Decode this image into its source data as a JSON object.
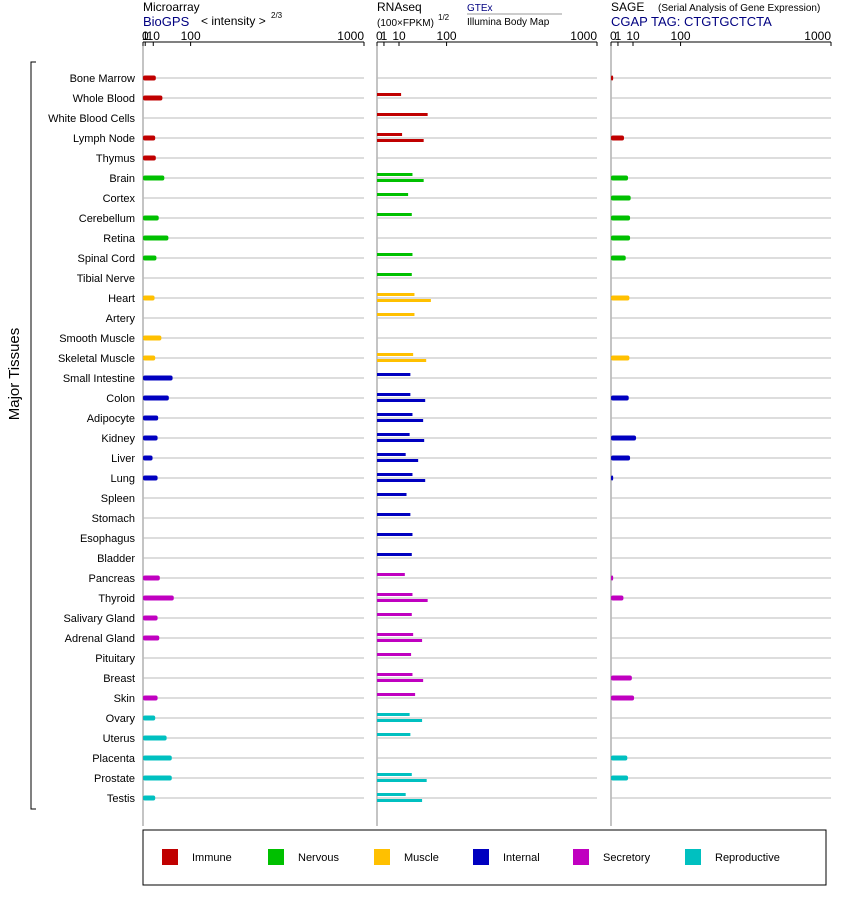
{
  "chart_data": {
    "type": "bar",
    "ylabel": "Major Tissues",
    "scale": "power",
    "panels": [
      {
        "title": "Microarray",
        "subtitle": "BioGPS",
        "unit_label": "< intensity >",
        "unit_exponent": "2/3",
        "ticks": [
          "0",
          "1",
          "10",
          "100",
          "1000"
        ],
        "xlim": [
          0,
          1000
        ]
      },
      {
        "title": "RNAseq",
        "unit_label": "(100×FPKM)",
        "unit_exponent": "1/2",
        "sources": [
          "GTEx",
          "Illumina Body Map"
        ],
        "ticks": [
          "0",
          "1",
          "10",
          "100",
          "1000"
        ],
        "xlim": [
          0,
          1000
        ]
      },
      {
        "title": "SAGE",
        "title_note": "(Serial Analysis of Gene Expression)",
        "subtitle": "CGAP TAG: CTGTGCTCTA",
        "ticks": [
          "0",
          "1",
          "10",
          "100",
          "1000"
        ],
        "xlim": [
          0,
          1000
        ]
      }
    ],
    "categories": [
      "Bone Marrow",
      "Whole Blood",
      "White Blood Cells",
      "Lymph Node",
      "Thymus",
      "Brain",
      "Cortex",
      "Cerebellum",
      "Retina",
      "Spinal Cord",
      "Tibial Nerve",
      "Heart",
      "Artery",
      "Smooth Muscle",
      "Skeletal Muscle",
      "Small Intestine",
      "Colon",
      "Adipocyte",
      "Kidney",
      "Liver",
      "Lung",
      "Spleen",
      "Stomach",
      "Esophagus",
      "Bladder",
      "Pancreas",
      "Thyroid",
      "Salivary Gland",
      "Adrenal Gland",
      "Pituitary",
      "Breast",
      "Skin",
      "Ovary",
      "Uterus",
      "Placenta",
      "Prostate",
      "Testis"
    ],
    "groups": [
      0,
      0,
      0,
      0,
      0,
      1,
      1,
      1,
      1,
      1,
      1,
      2,
      2,
      2,
      2,
      3,
      3,
      3,
      3,
      3,
      3,
      3,
      3,
      3,
      3,
      4,
      4,
      4,
      4,
      4,
      4,
      4,
      5,
      5,
      5,
      5,
      5
    ],
    "microarray": [
      14,
      26,
      null,
      13,
      14,
      30,
      null,
      19,
      39,
      15,
      null,
      12,
      null,
      24,
      13,
      49,
      40,
      18,
      17,
      9,
      17,
      null,
      null,
      null,
      null,
      21,
      52,
      17,
      20,
      null,
      null,
      17,
      13,
      35,
      47,
      47,
      13
    ],
    "rnaseq_gtex": [
      null,
      12,
      53,
      13,
      null,
      26,
      20,
      25,
      null,
      26,
      25,
      29,
      29,
      null,
      27,
      23,
      23,
      26,
      22,
      17,
      26,
      18,
      23,
      26,
      25,
      16,
      26,
      25,
      27,
      24,
      26,
      30,
      22,
      23,
      null,
      25,
      17
    ],
    "rnaseq_ibm": [
      null,
      null,
      null,
      45,
      null,
      45,
      null,
      null,
      null,
      null,
      null,
      60,
      null,
      null,
      50,
      null,
      48,
      44,
      46,
      35,
      48,
      null,
      null,
      null,
      null,
      null,
      53,
      null,
      42,
      null,
      44,
      null,
      42,
      null,
      null,
      51,
      42
    ],
    "sage": [
      0.1,
      null,
      null,
      3.5,
      null,
      6,
      8,
      7.5,
      7.5,
      4.5,
      null,
      7,
      null,
      null,
      7,
      null,
      6.5,
      null,
      13,
      7.5,
      0.1,
      null,
      null,
      null,
      null,
      0.1,
      3.2,
      null,
      null,
      null,
      9,
      11,
      null,
      null,
      5.5,
      6,
      null
    ],
    "legend": [
      {
        "name": "Immune",
        "color": "#c00000"
      },
      {
        "name": "Nervous",
        "color": "#00c000"
      },
      {
        "name": "Muscle",
        "color": "#ffc000"
      },
      {
        "name": "Internal",
        "color": "#0000c0"
      },
      {
        "name": "Secretory",
        "color": "#c000c0"
      },
      {
        "name": "Reproductive",
        "color": "#00c0c0"
      }
    ]
  }
}
